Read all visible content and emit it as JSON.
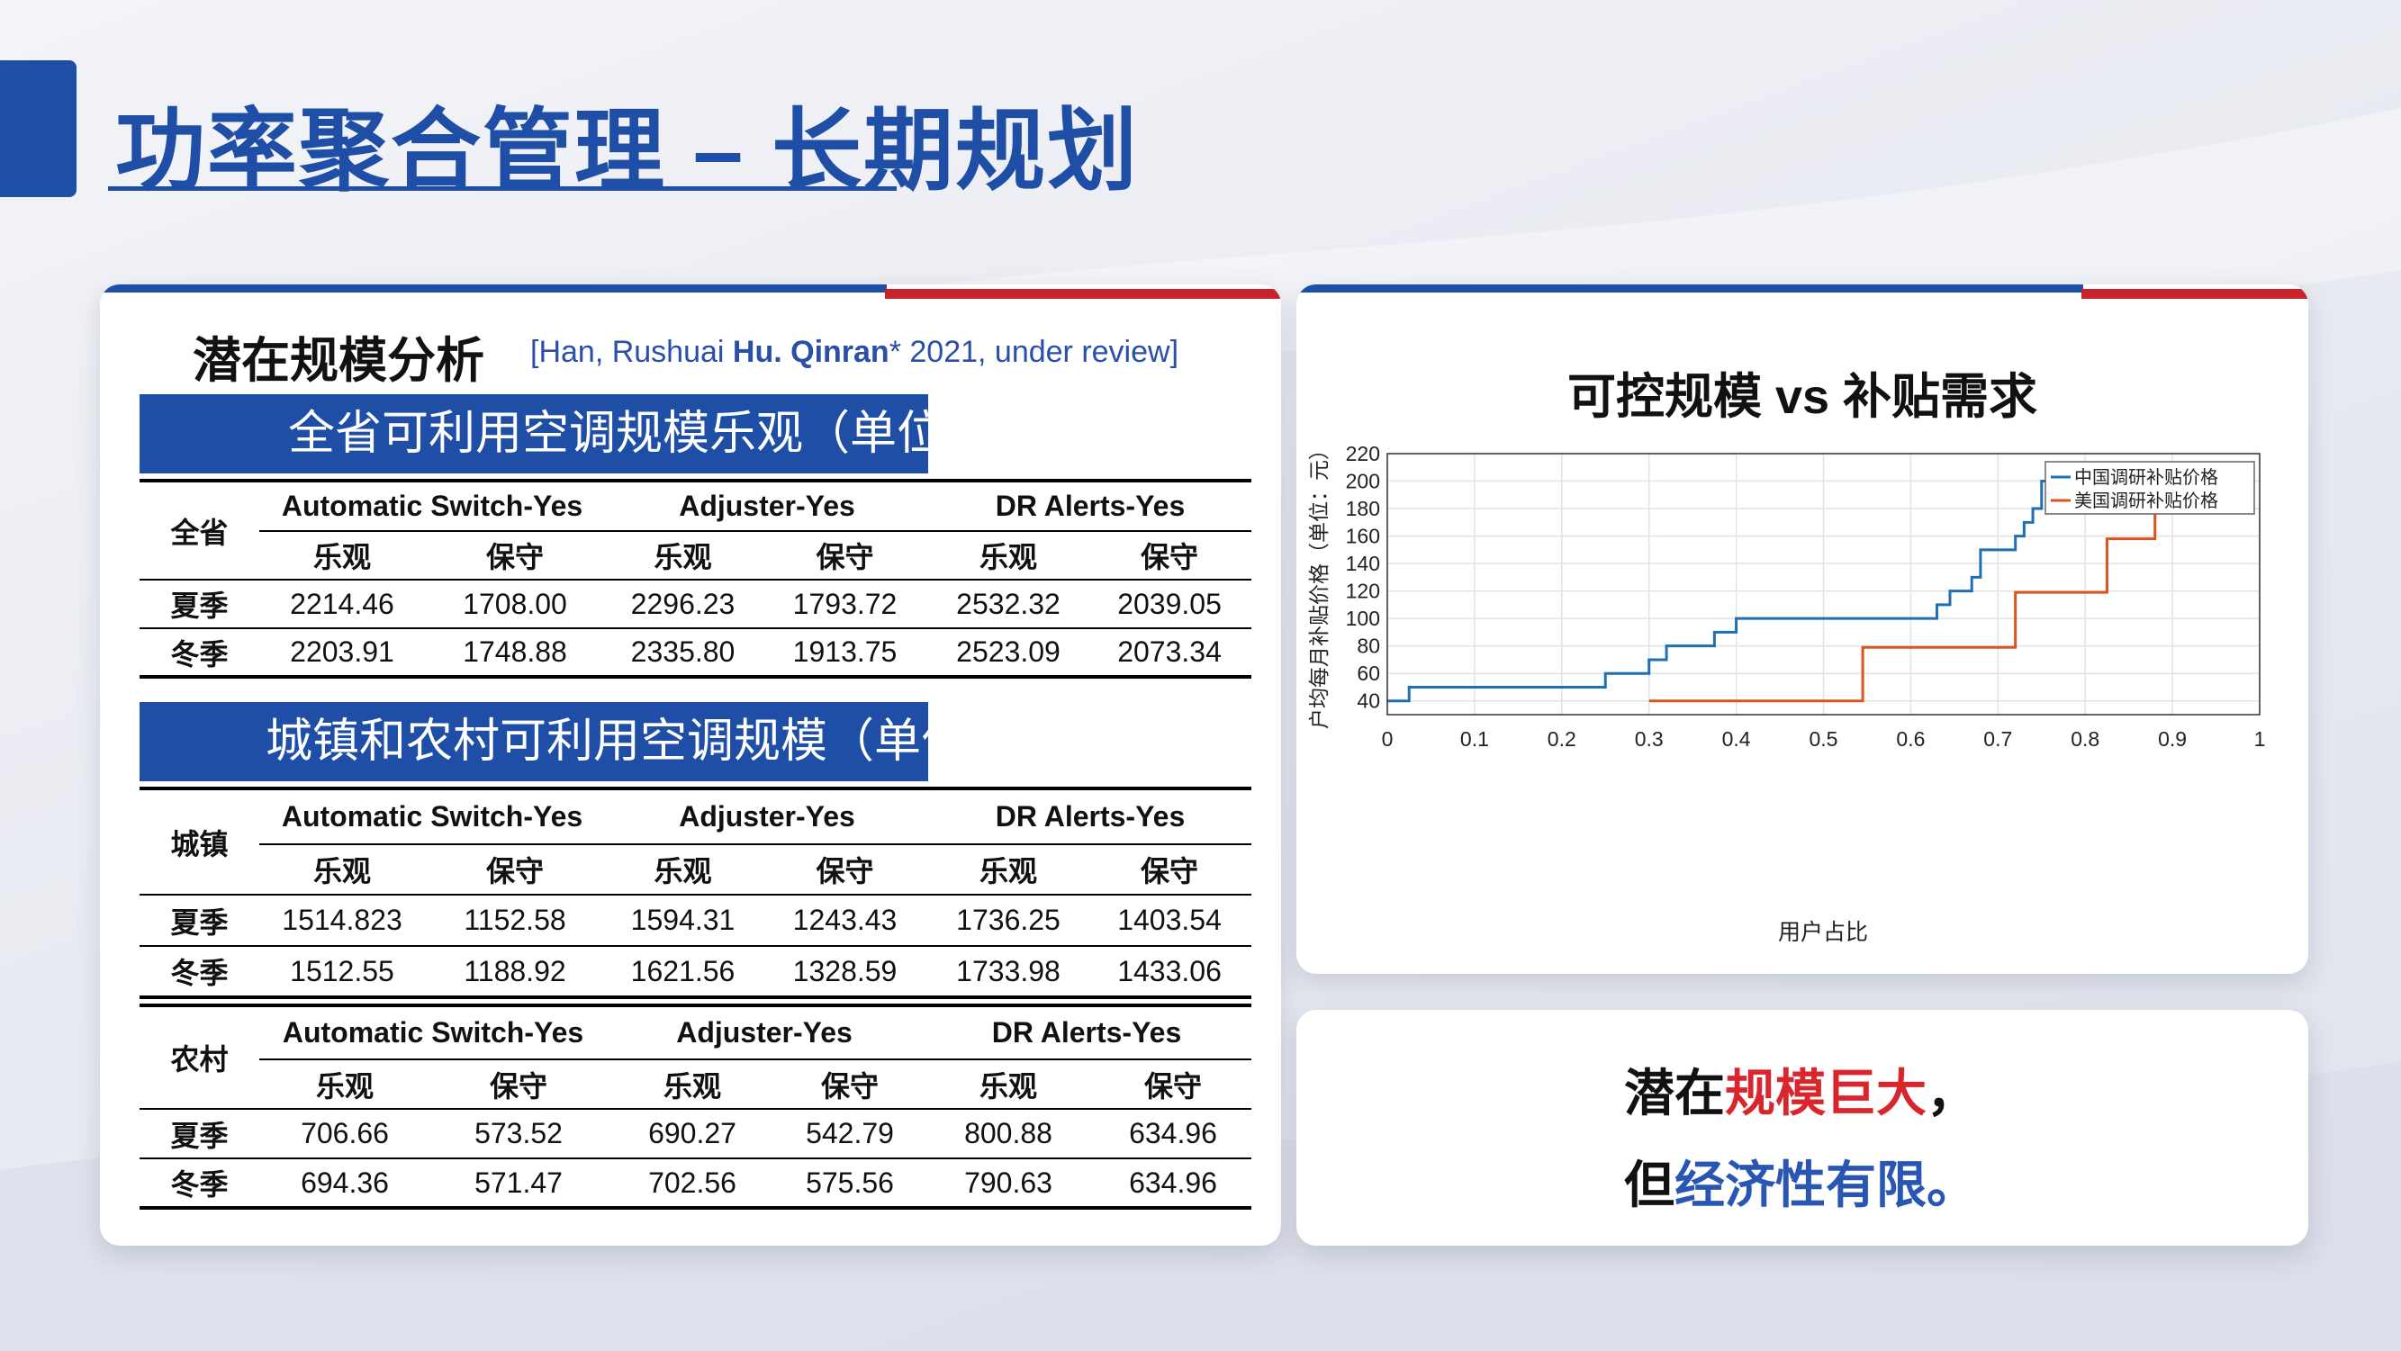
{
  "title": "功率聚合管理 – 长期规划",
  "left": {
    "section_title": "潜在规模分析",
    "citation": {
      "prefix": "[Han, Rushuai ",
      "bold": "Hu. Qinran",
      "suffix": "* 2021, under review]"
    },
    "banner1": "全省可利用空调规模乐观（单位",
    "banner2": "城镇和农村可利用空调规模（单位",
    "groups": [
      "Automatic Switch-Yes",
      "Adjuster-Yes",
      "DR Alerts-Yes"
    ],
    "sub_headers": [
      "乐观",
      "保守",
      "乐观",
      "保守",
      "乐观",
      "保守"
    ],
    "tables": [
      {
        "label": "全省",
        "rows": [
          {
            "name": "夏季",
            "values": [
              "2214.46",
              "1708.00",
              "2296.23",
              "1793.72",
              "2532.32",
              "2039.05"
            ]
          },
          {
            "name": "冬季",
            "values": [
              "2203.91",
              "1748.88",
              "2335.80",
              "1913.75",
              "2523.09",
              "2073.34"
            ]
          }
        ]
      },
      {
        "label": "城镇",
        "rows": [
          {
            "name": "夏季",
            "values": [
              "1514.823",
              "1152.58",
              "1594.31",
              "1243.43",
              "1736.25",
              "1403.54"
            ]
          },
          {
            "name": "冬季",
            "values": [
              "1512.55",
              "1188.92",
              "1621.56",
              "1328.59",
              "1733.98",
              "1433.06"
            ]
          }
        ]
      },
      {
        "label": "农村",
        "rows": [
          {
            "name": "夏季",
            "values": [
              "706.66",
              "573.52",
              "690.27",
              "542.79",
              "800.88",
              "634.96"
            ]
          },
          {
            "name": "冬季",
            "values": [
              "694.36",
              "571.47",
              "702.56",
              "575.56",
              "790.63",
              "634.96"
            ]
          }
        ]
      }
    ]
  },
  "chart_data": {
    "type": "line",
    "title": "可控规模 vs 补贴需求",
    "xlabel": "用户占比",
    "ylabel": "户均每月补贴价格（单位：元）",
    "xlim": [
      0,
      1
    ],
    "ylim": [
      30,
      220
    ],
    "xticks": [
      0,
      0.1,
      0.2,
      0.3,
      0.4,
      0.5,
      0.6,
      0.7,
      0.8,
      0.9,
      1
    ],
    "yticks": [
      40,
      60,
      80,
      100,
      120,
      140,
      160,
      180,
      200,
      220
    ],
    "grid": true,
    "legend_position": "top-right",
    "series": [
      {
        "name": "中国调研补贴价格",
        "color": "#1f6fb5",
        "step": true,
        "x": [
          0,
          0.025,
          0.25,
          0.3,
          0.32,
          0.375,
          0.4,
          0.63,
          0.645,
          0.67,
          0.68,
          0.72,
          0.73,
          0.74,
          0.75,
          0.76
        ],
        "y": [
          40,
          50,
          60,
          70,
          80,
          90,
          100,
          110,
          120,
          130,
          150,
          160,
          170,
          180,
          200,
          200
        ]
      },
      {
        "name": "美国调研补贴价格",
        "color": "#d9541e",
        "step": true,
        "x": [
          0.3,
          0.545,
          0.72,
          0.825,
          0.88,
          0.88
        ],
        "y": [
          40,
          79,
          119,
          158,
          197,
          200
        ]
      }
    ]
  },
  "note": {
    "line1_a": "潜在",
    "line1_b": "规模巨大",
    "line1_c": "，",
    "line2_a": "但",
    "line2_b": "经济性有限",
    "line2_c": "。"
  }
}
